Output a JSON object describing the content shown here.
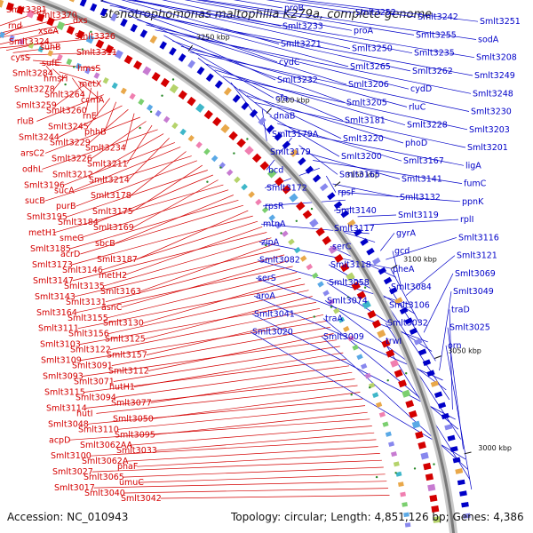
{
  "title": "Stenotrophomonas maltophilia K279a, complete genome",
  "footer": {
    "accession": "Accession: NC_010943",
    "stats": "Topology: circular; Length: 4,851,126 bp; Genes: 4,386"
  },
  "colors": {
    "forward_strand": "#d40000",
    "reverse_strand": "#0000c8",
    "backbone": "#7a7a7a",
    "tick": "#2a8a2a"
  },
  "ticks": [
    "3350 kbp",
    "3300 kbp",
    "3250 kbp",
    "3200 kbp",
    "3150 kbp",
    "3100 kbp",
    "3050 kbp",
    "3000 kbp"
  ],
  "left_labels": [
    "Smlt3381",
    "Smlt3370",
    "dxs",
    "rnd",
    "xseA",
    "Smlt3326",
    "Smlt3324",
    "suhB",
    "Smlt3311",
    "cysS",
    "sufE",
    "hmsS",
    "Smlt3284",
    "hmsH",
    "metX",
    "Smlt3278",
    "Smlt3264",
    "ccmA",
    "Smlt3259",
    "Smlt3260",
    "rnE",
    "rluB",
    "Smlt3245",
    "phhB",
    "Smlt3244",
    "Smlt3229",
    "Smlt3234",
    "arsC2",
    "Smlt3226",
    "Smlt3211",
    "odhL",
    "Smlt3212",
    "Smlt3214",
    "Smlt3196",
    "sucA",
    "Smlt3178",
    "sucB",
    "purB",
    "Smlt3175",
    "Smlt3195",
    "Smlt3184",
    "Smlt3169",
    "metH1",
    "smeG",
    "sbcB",
    "Smlt3185",
    "acrD",
    "Smlt3187",
    "Smlt3173",
    "Smlt3146",
    "metH2",
    "Smlt3147",
    "Smlt3135",
    "Smlt3163",
    "Smlt3143",
    "Smlt3131",
    "asnC",
    "Smlt3164",
    "Smlt3155",
    "Smlt3130",
    "Smlt3111",
    "Smlt3156",
    "Smlt3125",
    "Smlt3103",
    "Smlt3122",
    "Smlt3157",
    "Smlt3109",
    "Smlt3091",
    "Smlt3112",
    "Smlt3093",
    "Smlt3071",
    "hutH1",
    "Smlt3115",
    "Smlt3094",
    "Smlt3077",
    "Smlt3114",
    "hutI",
    "Smlt3050",
    "Smlt3048",
    "Smlt3110",
    "Smlt3095",
    "acpD",
    "Smlt3062AA",
    "Smlt3033",
    "Smlt3100",
    "Smlt3062A",
    "phaF",
    "Smlt3027",
    "Smlt3065",
    "umuC",
    "Smlt3017",
    "Smlt3040",
    "Smlt3042"
  ],
  "right_labels": [
    "proB",
    "Smlt3252",
    "Smlt3242",
    "Smlt3251",
    "Smlt3233",
    "proA",
    "Smlt3255",
    "sodA",
    "Smlt3221",
    "Smlt3250",
    "Smlt3235",
    "Smlt3208",
    "cydC",
    "Smlt3265",
    "Smlt3262",
    "Smlt3249",
    "Smlt3232",
    "Smlt3206",
    "cydD",
    "Smlt3248",
    "cfa",
    "Smlt3205",
    "rluC",
    "Smlt3230",
    "dnaB",
    "Smlt3181",
    "Smlt3228",
    "Smlt3203",
    "Smlt3179A",
    "Smlt3220",
    "phoD",
    "Smlt3201",
    "Smlt3179",
    "Smlt3200",
    "Smlt3167",
    "ligA",
    "bcd",
    "Smlt3165",
    "Smlt3141",
    "fumC",
    "Smlt3172",
    "rpsF",
    "Smlt3132",
    "ppnK",
    "rpsR",
    "Smlt3140",
    "Smlt3119",
    "rplI",
    "mtnA",
    "Smlt3117",
    "gyrA",
    "Smlt3116",
    "zipA",
    "serC",
    "gcd",
    "Smlt3121",
    "Smlt3082",
    "Smlt3118",
    "pheA",
    "Smlt3069",
    "serS",
    "Smlt3058",
    "Smlt3084",
    "Smlt3049",
    "aroA",
    "Smlt3074",
    "Smlt3106",
    "traD",
    "Smlt3041",
    "traA",
    "Smlt3032",
    "Smlt3025",
    "Smlt3020",
    "Smlt3009",
    "trwI",
    "orn"
  ]
}
